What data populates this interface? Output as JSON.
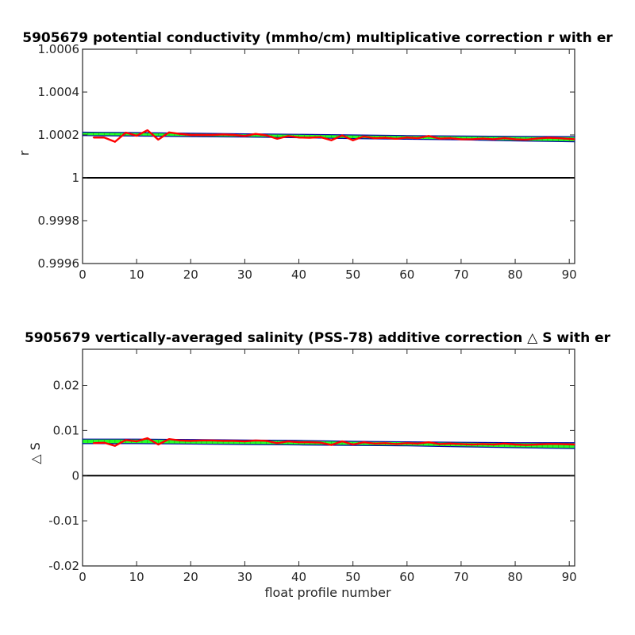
{
  "chart_data": [
    {
      "type": "line",
      "title": "5905679 potential conductivity (mmho/cm) multiplicative correction r with er",
      "xlabel": "",
      "ylabel": "r",
      "xlim": [
        0,
        91
      ],
      "ylim": [
        0.9996,
        1.0006
      ],
      "xticks": [
        "0",
        "10",
        "20",
        "30",
        "40",
        "50",
        "60",
        "70",
        "80",
        "90"
      ],
      "yticks": [
        "0.9996",
        "0.9998",
        "1",
        "1.0002",
        "1.0004",
        "1.0006"
      ],
      "reference_line": 1.0,
      "colors": {
        "reference": "#000000",
        "mean": "#ff0000",
        "error_band": "#00ff00",
        "error_outer": "#0000aa"
      },
      "series": [
        {
          "kind": "line",
          "x": [
            2,
            4,
            6,
            8,
            10,
            12,
            14,
            16,
            18,
            20,
            22,
            24,
            26,
            28,
            30,
            32,
            34,
            36,
            38,
            40,
            42,
            44,
            46,
            48,
            50,
            52,
            54,
            56,
            58,
            60,
            62,
            64,
            66,
            68,
            70,
            72,
            74,
            76,
            78,
            80,
            82,
            84,
            86,
            88,
            91
          ],
          "values": [
            1.000188,
            1.000188,
            1.000168,
            1.000211,
            1.000196,
            1.000222,
            1.000178,
            1.000212,
            1.000205,
            1.0002,
            1.0002,
            1.0002,
            1.000202,
            1.0002,
            1.000195,
            1.000205,
            1.000198,
            1.000182,
            1.000195,
            1.000188,
            1.000187,
            1.00019,
            1.000175,
            1.000198,
            1.000175,
            1.000193,
            1.000185,
            1.000187,
            1.000182,
            1.000188,
            1.000185,
            1.000195,
            1.000183,
            1.000185,
            1.00018,
            1.00018,
            1.000183,
            1.00018,
            1.000185,
            1.00018,
            1.000178,
            1.000183,
            1.000187,
            1.000185,
            1.00018
          ]
        },
        {
          "kind": "error_band",
          "x": [
            0,
            10,
            20,
            30,
            40,
            50,
            60,
            70,
            80,
            91
          ],
          "upper": [
            1.000213,
            1.000211,
            1.000208,
            1.000205,
            1.000203,
            1.0002,
            1.000197,
            1.000195,
            1.000193,
            1.000192
          ],
          "lower": [
            1.000197,
            1.000195,
            1.000192,
            1.00019,
            1.000187,
            1.000183,
            1.00018,
            1.000177,
            1.000172,
            1.000168
          ]
        }
      ]
    },
    {
      "type": "line",
      "title": "5905679 vertically-averaged salinity (PSS-78) additive correction △ S with er",
      "xlabel": "float profile number",
      "ylabel": "△ S",
      "xlim": [
        0,
        91
      ],
      "ylim": [
        -0.02,
        0.028
      ],
      "xticks": [
        "0",
        "10",
        "20",
        "30",
        "40",
        "50",
        "60",
        "70",
        "80",
        "90"
      ],
      "yticks": [
        "-0.02",
        "-0.01",
        "0",
        "0.01",
        "0.02"
      ],
      "reference_line": 0,
      "colors": {
        "reference": "#000000",
        "mean": "#ff0000",
        "error_band": "#00ff00",
        "error_outer": "#0000aa"
      },
      "series": [
        {
          "kind": "line",
          "x": [
            2,
            4,
            6,
            8,
            10,
            12,
            14,
            16,
            18,
            20,
            22,
            24,
            26,
            28,
            30,
            32,
            34,
            36,
            38,
            40,
            42,
            44,
            46,
            48,
            50,
            52,
            54,
            56,
            58,
            60,
            62,
            64,
            66,
            68,
            70,
            72,
            74,
            76,
            78,
            80,
            82,
            84,
            86,
            88,
            91
          ],
          "values": [
            0.0072,
            0.0073,
            0.0066,
            0.0079,
            0.0076,
            0.0083,
            0.0069,
            0.0081,
            0.0078,
            0.0077,
            0.0078,
            0.0078,
            0.0077,
            0.0077,
            0.0076,
            0.0078,
            0.0077,
            0.0072,
            0.0076,
            0.0074,
            0.0074,
            0.0073,
            0.0068,
            0.0076,
            0.0069,
            0.0074,
            0.0071,
            0.0072,
            0.007,
            0.0072,
            0.0071,
            0.0074,
            0.007,
            0.0071,
            0.007,
            0.0069,
            0.007,
            0.0069,
            0.0071,
            0.0069,
            0.0068,
            0.0069,
            0.007,
            0.007,
            0.0069
          ]
        },
        {
          "kind": "error_band",
          "x": [
            0,
            10,
            20,
            30,
            40,
            50,
            60,
            70,
            80,
            91
          ],
          "upper": [
            0.0081,
            0.0081,
            0.008,
            0.0079,
            0.0078,
            0.0076,
            0.0075,
            0.0074,
            0.0073,
            0.0073
          ],
          "lower": [
            0.0071,
            0.0071,
            0.007,
            0.0069,
            0.0068,
            0.0067,
            0.0066,
            0.0064,
            0.0062,
            0.006
          ]
        }
      ]
    }
  ]
}
